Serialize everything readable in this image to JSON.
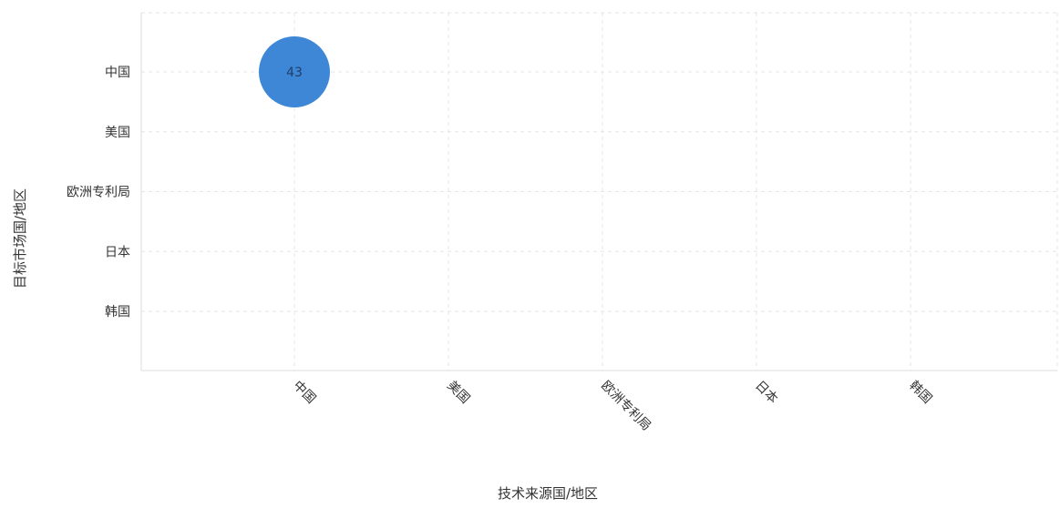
{
  "chart_data": {
    "type": "scatter",
    "title": "",
    "xlabel": "技术来源国/地区",
    "ylabel": "目标市场国/地区",
    "x_categories": [
      "中国",
      "美国",
      "欧洲专利局",
      "日本",
      "韩国"
    ],
    "y_categories": [
      "中国",
      "美国",
      "欧洲专利局",
      "日本",
      "韩国"
    ],
    "grid": true,
    "legend": "none",
    "bubble_color": "#3d87d6",
    "points": [
      {
        "x": "中国",
        "y": "中国",
        "value": 43,
        "label": "43"
      }
    ]
  }
}
